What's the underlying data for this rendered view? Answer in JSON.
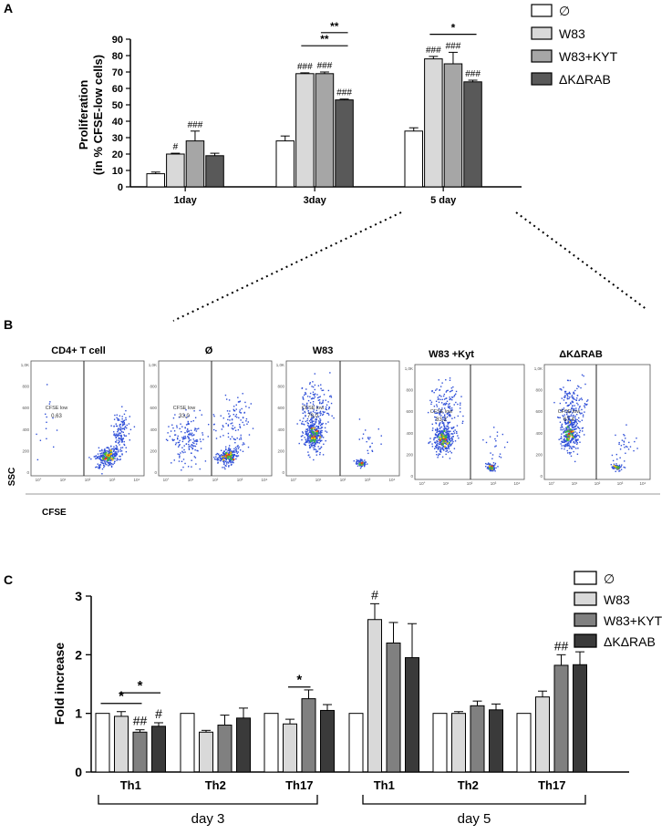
{
  "panel_labels": {
    "a": "A",
    "b": "B",
    "c": "C"
  },
  "colors": {
    "none": "#ffffff",
    "w83": "#d9d9d9",
    "w83kyt": "#a6a6a6",
    "dkdrab": "#595959",
    "dkdrab_c": "#3a3a3a",
    "w83kyt_c": "#808080",
    "flow_bg": "#ffffff"
  },
  "chart_data": [
    {
      "id": "panel-a",
      "type": "bar",
      "ylabel_lines": [
        "Proliferation",
        "(in % CFSE-low cells)"
      ],
      "ylim": [
        0,
        90
      ],
      "yticks": [
        0,
        10,
        20,
        30,
        40,
        50,
        60,
        70,
        80,
        90
      ],
      "categories": [
        "1day",
        "3day",
        "5 day"
      ],
      "series": [
        {
          "name": "∅",
          "color_key": "none",
          "values": [
            8,
            28,
            34
          ],
          "errors": [
            1,
            3,
            2
          ],
          "marks": [
            "",
            "",
            ""
          ]
        },
        {
          "name": "W83",
          "color_key": "w83",
          "values": [
            20,
            69,
            78
          ],
          "errors": [
            0.5,
            0.5,
            1.5
          ],
          "marks": [
            "#",
            "###",
            "###"
          ]
        },
        {
          "name": "W83+KYT",
          "color_key": "w83kyt",
          "values": [
            28,
            69,
            75
          ],
          "errors": [
            6,
            1,
            7
          ],
          "marks": [
            "###",
            "###",
            "###"
          ]
        },
        {
          "name": "ΔKΔRAB",
          "color_key": "dkdrab",
          "values": [
            19,
            53,
            64
          ],
          "errors": [
            1.5,
            0.5,
            1
          ],
          "marks": [
            "",
            "###",
            "###"
          ]
        }
      ],
      "significance": [
        {
          "group": 1,
          "from": 1,
          "to": 3,
          "label": "**",
          "y": 86
        },
        {
          "group": 1,
          "from": 2,
          "to": 3,
          "label": "**",
          "y": 94
        },
        {
          "group": 2,
          "from": 1,
          "to": 3,
          "label": "*",
          "y": 93
        }
      ]
    },
    {
      "id": "panel-c",
      "type": "bar",
      "ylabel": "Fold increase",
      "ylim": [
        0,
        3
      ],
      "yticks": [
        0,
        1,
        2,
        3
      ],
      "categories": [
        "Th1",
        "Th2",
        "Th17",
        "Th1",
        "Th2",
        "Th17"
      ],
      "groups": [
        "day 3",
        "day 5"
      ],
      "series": [
        {
          "name": "∅",
          "color_key": "none",
          "values": [
            1.0,
            1.0,
            1.0,
            1.0,
            1.0,
            1.0
          ],
          "errors": [
            0,
            0,
            0,
            0,
            0,
            0
          ],
          "marks": [
            "",
            "",
            "",
            "",
            "",
            ""
          ]
        },
        {
          "name": "W83",
          "color_key": "w83",
          "values": [
            0.95,
            0.68,
            0.82,
            2.6,
            1.0,
            1.28
          ],
          "errors": [
            0.08,
            0.03,
            0.08,
            0.27,
            0.03,
            0.1
          ],
          "marks": [
            "",
            "",
            "",
            "#",
            "",
            ""
          ]
        },
        {
          "name": "W83+KYT",
          "color_key": "w83kyt_c",
          "values": [
            0.68,
            0.8,
            1.25,
            2.2,
            1.13,
            1.82
          ],
          "errors": [
            0.04,
            0.17,
            0.15,
            0.35,
            0.08,
            0.18
          ],
          "marks": [
            "##",
            "",
            "",
            "",
            "",
            "##"
          ]
        },
        {
          "name": "ΔKΔRAB",
          "color_key": "dkdrab_c",
          "values": [
            0.78,
            0.92,
            1.05,
            1.95,
            1.06,
            1.83
          ],
          "errors": [
            0.06,
            0.17,
            0.1,
            0.58,
            0.1,
            0.22
          ],
          "marks": [
            "#",
            "",
            "",
            "",
            "",
            "#"
          ]
        }
      ],
      "significance": [
        {
          "category": 0,
          "from": 0,
          "to": 2,
          "label": "*",
          "y": 1.17
        },
        {
          "category": 0,
          "from": 1,
          "to": 3,
          "label": "*",
          "y": 1.35
        },
        {
          "category": 2,
          "from": 1,
          "to": 2,
          "label": "*",
          "y": 1.45
        }
      ]
    }
  ],
  "flow": {
    "axis_y": "SSC",
    "axis_x": "CFSE",
    "plots": [
      {
        "title": "CD4+ T cell",
        "gate_label": "CFSE low",
        "gate_value": "0,63",
        "pop": "cd4"
      },
      {
        "title": "Ø",
        "gate_label": "CFSE low",
        "gate_value": "33,0",
        "pop": "none"
      },
      {
        "title": "W83",
        "gate_label": "CFSE low",
        "gate_value": "79,0",
        "pop": "w83"
      },
      {
        "title": "W83 +Kyt",
        "gate_label": "CFSE low",
        "gate_value": "83,2",
        "pop": "w83"
      },
      {
        "title": "ΔKΔRAB",
        "gate_label": "CFSE low",
        "gate_value": "67,4",
        "pop": "dk"
      }
    ],
    "ytick_labels": [
      "1,0K",
      "800",
      "600",
      "400",
      "200",
      "0"
    ],
    "xtick_labels": [
      "10°",
      "10¹",
      "10²",
      "10³",
      "10⁴"
    ]
  }
}
